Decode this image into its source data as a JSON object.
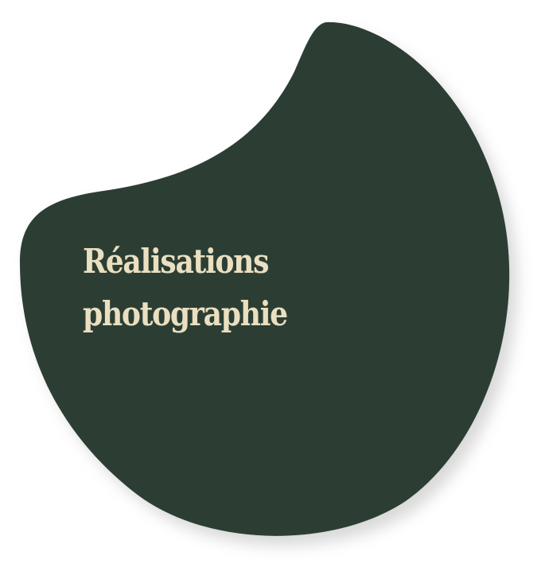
{
  "card": {
    "title_line1": "Réalisations",
    "title_line2": "photographie",
    "blob_color": "#2c3e34",
    "shadow_color": "#b8bab8",
    "text_color": "#eadfc0"
  }
}
